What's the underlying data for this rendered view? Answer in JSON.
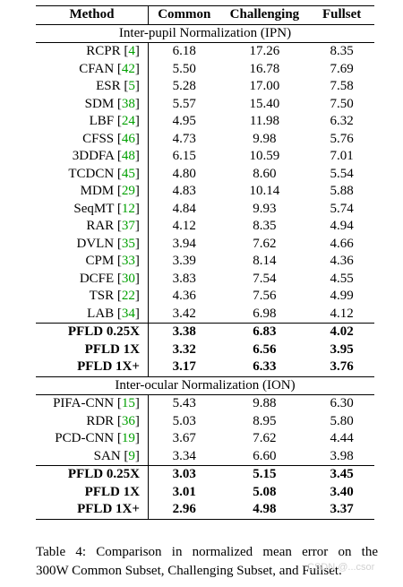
{
  "table": {
    "headers": [
      "Method",
      "Common",
      "Challenging",
      "Fullset"
    ],
    "sections": [
      {
        "title": "Inter-pupil Normalization (IPN)",
        "rows": [
          {
            "method": "RCPR",
            "ref": "4",
            "common": "6.18",
            "challenging": "17.26",
            "fullset": "8.35"
          },
          {
            "method": "CFAN",
            "ref": "42",
            "common": "5.50",
            "challenging": "16.78",
            "fullset": "7.69"
          },
          {
            "method": "ESR",
            "ref": "5",
            "common": "5.28",
            "challenging": "17.00",
            "fullset": "7.58"
          },
          {
            "method": "SDM",
            "ref": "38",
            "common": "5.57",
            "challenging": "15.40",
            "fullset": "7.50"
          },
          {
            "method": "LBF",
            "ref": "24",
            "common": "4.95",
            "challenging": "11.98",
            "fullset": "6.32"
          },
          {
            "method": "CFSS",
            "ref": "46",
            "common": "4.73",
            "challenging": "9.98",
            "fullset": "5.76"
          },
          {
            "method": "3DDFA",
            "ref": "48",
            "common": "6.15",
            "challenging": "10.59",
            "fullset": "7.01"
          },
          {
            "method": "TCDCN",
            "ref": "45",
            "common": "4.80",
            "challenging": "8.60",
            "fullset": "5.54"
          },
          {
            "method": "MDM",
            "ref": "29",
            "common": "4.83",
            "challenging": "10.14",
            "fullset": "5.88"
          },
          {
            "method": "SeqMT",
            "ref": "12",
            "common": "4.84",
            "challenging": "9.93",
            "fullset": "5.74"
          },
          {
            "method": "RAR",
            "ref": "37",
            "common": "4.12",
            "challenging": "8.35",
            "fullset": "4.94"
          },
          {
            "method": "DVLN",
            "ref": "35",
            "common": "3.94",
            "challenging": "7.62",
            "fullset": "4.66"
          },
          {
            "method": "CPM",
            "ref": "33",
            "common": "3.39",
            "challenging": "8.14",
            "fullset": "4.36"
          },
          {
            "method": "DCFE",
            "ref": "30",
            "common": "3.83",
            "challenging": "7.54",
            "fullset": "4.55"
          },
          {
            "method": "TSR",
            "ref": "22",
            "common": "4.36",
            "challenging": "7.56",
            "fullset": "4.99"
          },
          {
            "method": "LAB",
            "ref": "34",
            "common": "3.42",
            "challenging": "6.98",
            "fullset": "4.12"
          }
        ],
        "ours": [
          {
            "method": "PFLD 0.25X",
            "common": "3.38",
            "challenging": "6.83",
            "fullset": "4.02"
          },
          {
            "method": "PFLD 1X",
            "common": "3.32",
            "challenging": "6.56",
            "fullset": "3.95"
          },
          {
            "method": "PFLD 1X+",
            "common": "3.17",
            "challenging": "6.33",
            "fullset": "3.76"
          }
        ]
      },
      {
        "title": "Inter-ocular Normalization (ION)",
        "rows": [
          {
            "method": "PIFA-CNN",
            "ref": "15",
            "common": "5.43",
            "challenging": "9.88",
            "fullset": "6.30"
          },
          {
            "method": "RDR",
            "ref": "36",
            "common": "5.03",
            "challenging": "8.95",
            "fullset": "5.80"
          },
          {
            "method": "PCD-CNN",
            "ref": "19",
            "common": "3.67",
            "challenging": "7.62",
            "fullset": "4.44"
          },
          {
            "method": "SAN",
            "ref": "9",
            "common": "3.34",
            "challenging": "6.60",
            "fullset": "3.98"
          }
        ],
        "ours": [
          {
            "method": "PFLD 0.25X",
            "common": "3.03",
            "challenging": "5.15",
            "fullset": "3.45"
          },
          {
            "method": "PFLD 1X",
            "common": "3.01",
            "challenging": "5.08",
            "fullset": "3.40"
          },
          {
            "method": "PFLD 1X+",
            "common": "2.96",
            "challenging": "4.98",
            "fullset": "3.37"
          }
        ]
      }
    ],
    "ref_color": "#00a000"
  },
  "caption": {
    "line1": "Table 4:  Comparison in normalized mean error on the",
    "line2": "300W Common Subset, Challenging Subset, and Fullset."
  },
  "watermark": "CSDN @...csor"
}
